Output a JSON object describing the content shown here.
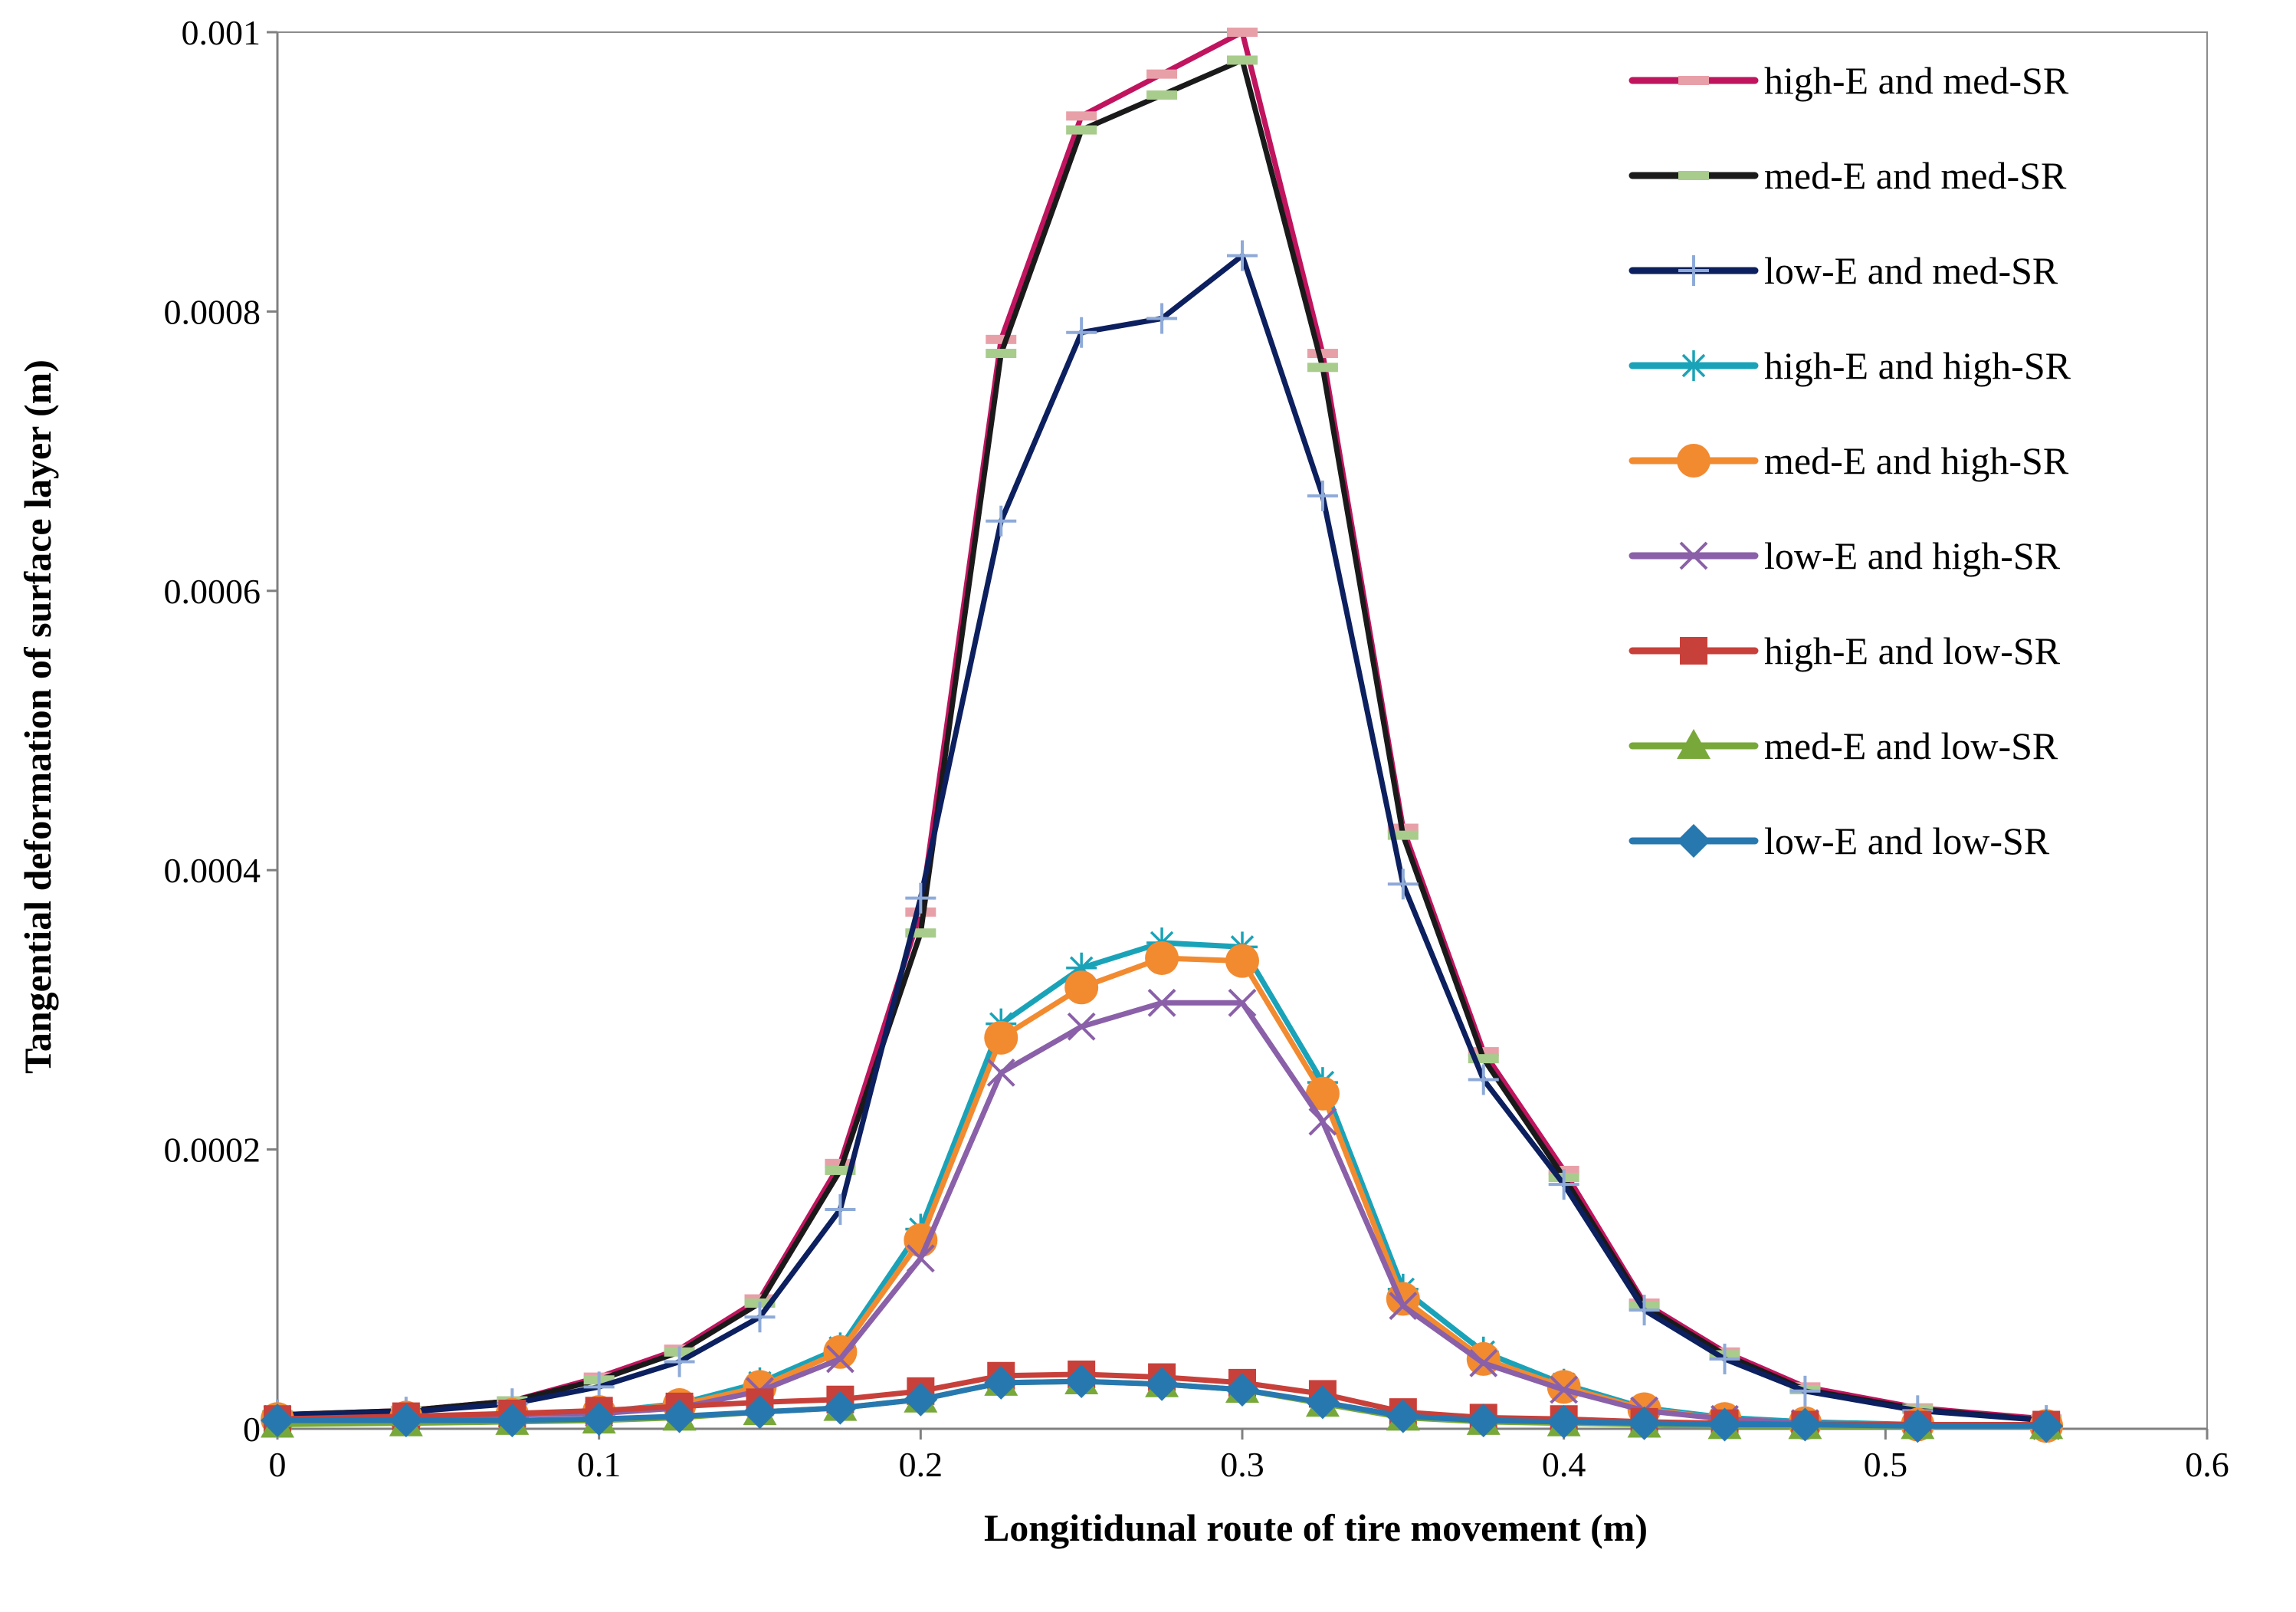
{
  "chart_data": {
    "type": "line",
    "title": "",
    "xlabel": "Longitidunal route of tire movement (m)",
    "ylabel": "Tangential deformation of surface layer (m)",
    "xlim": [
      0,
      0.6
    ],
    "ylim": [
      0,
      0.001
    ],
    "xticks": [
      0,
      0.1,
      0.2,
      0.3,
      0.4,
      0.5,
      0.6
    ],
    "xtick_labels": [
      "0",
      "0.1",
      "0.2",
      "0.3",
      "0.4",
      "0.5",
      "0.6"
    ],
    "yticks": [
      0,
      0.0002,
      0.0004,
      0.0006,
      0.0008,
      0.001
    ],
    "ytick_labels": [
      "0",
      "0.0002",
      "0.0004",
      "0.0006",
      "0.0008",
      "0.001"
    ],
    "grid": false,
    "legend_position": "top-right",
    "x": [
      0,
      0.04,
      0.073,
      0.1,
      0.125,
      0.15,
      0.175,
      0.2,
      0.225,
      0.25,
      0.275,
      0.3,
      0.325,
      0.35,
      0.375,
      0.4,
      0.425,
      0.45,
      0.475,
      0.51,
      0.55
    ],
    "series": [
      {
        "name": "high-E and med-SR",
        "color": "#c0145e",
        "marker_color": "#e8a0a8",
        "marker": "dash",
        "values": [
          1e-05,
          1.3e-05,
          2e-05,
          3.7e-05,
          5.7e-05,
          9.3e-05,
          0.00019,
          0.00037,
          0.00078,
          0.00094,
          0.00097,
          0.001,
          0.00077,
          0.00043,
          0.00027,
          0.000185,
          9e-05,
          5.5e-05,
          3e-05,
          1.5e-05,
          7e-06
        ]
      },
      {
        "name": "med-E and med-SR",
        "color": "#1a1a1a",
        "marker_color": "#a8cc8c",
        "marker": "dash",
        "values": [
          1e-05,
          1.3e-05,
          2e-05,
          3.5e-05,
          5.5e-05,
          9e-05,
          0.000185,
          0.000355,
          0.00077,
          0.00093,
          0.000955,
          0.00098,
          0.00076,
          0.000425,
          0.000265,
          0.00018,
          8.8e-05,
          5.3e-05,
          2.8e-05,
          1.4e-05,
          6e-06
        ]
      },
      {
        "name": "low-E and med-SR",
        "color": "#0c1f5e",
        "marker_color": "#8eaad8",
        "marker": "plus",
        "values": [
          1e-05,
          1.2e-05,
          1.8e-05,
          3e-05,
          4.8e-05,
          8e-05,
          0.000157,
          0.00038,
          0.00065,
          0.000785,
          0.000795,
          0.00084,
          0.000668,
          0.00039,
          0.00025,
          0.000175,
          8.5e-05,
          5e-05,
          2.7e-05,
          1.3e-05,
          6e-06
        ]
      },
      {
        "name": "high-E and high-SR",
        "color": "#1aa3b8",
        "marker_color": "#1aa3b8",
        "marker": "asterisk",
        "values": [
          7e-06,
          8e-06,
          1e-05,
          1.2e-05,
          1.8e-05,
          3.3e-05,
          5.8e-05,
          0.000143,
          0.00029,
          0.00033,
          0.000348,
          0.000345,
          0.000248,
          0.0001,
          5.5e-05,
          3.2e-05,
          1.5e-05,
          8e-06,
          5e-06,
          3e-06,
          2e-06
        ]
      },
      {
        "name": "med-E and high-SR",
        "color": "#f28a30",
        "marker_color": "#f28a30",
        "marker": "circle",
        "values": [
          7e-06,
          8e-06,
          1e-05,
          1.2e-05,
          1.7e-05,
          3e-05,
          5.5e-05,
          0.000135,
          0.00028,
          0.000316,
          0.000337,
          0.000335,
          0.00024,
          9.3e-05,
          5e-05,
          3e-05,
          1.4e-05,
          7e-06,
          4e-06,
          3e-06,
          2e-06
        ]
      },
      {
        "name": "low-E and high-SR",
        "color": "#8a60a8",
        "marker_color": "#8a60a8",
        "marker": "x",
        "values": [
          7e-06,
          8e-06,
          1e-05,
          1.1e-05,
          1.5e-05,
          2.7e-05,
          5e-05,
          0.000122,
          0.000255,
          0.000288,
          0.000305,
          0.000305,
          0.00022,
          8.8e-05,
          4.7e-05,
          2.8e-05,
          1.3e-05,
          7e-06,
          4e-06,
          3e-06,
          2e-06
        ]
      },
      {
        "name": "high-E and low-SR",
        "color": "#c8403a",
        "marker_color": "#c8403a",
        "marker": "square",
        "values": [
          7e-06,
          9e-06,
          1.1e-05,
          1.3e-05,
          1.6e-05,
          1.9e-05,
          2.1e-05,
          2.7e-05,
          3.8e-05,
          3.9e-05,
          3.7e-05,
          3.3e-05,
          2.5e-05,
          1.2e-05,
          8e-06,
          7e-06,
          5e-06,
          4e-06,
          3e-06,
          3e-06,
          3e-06
        ]
      },
      {
        "name": "med-E and low-SR",
        "color": "#78a83a",
        "marker_color": "#78a83a",
        "marker": "triangle",
        "values": [
          3e-06,
          4e-06,
          5e-06,
          6e-06,
          8e-06,
          1.2e-05,
          1.5e-05,
          2.1e-05,
          3.3e-05,
          3.4e-05,
          3.2e-05,
          2.8e-05,
          1.8e-05,
          8e-06,
          5e-06,
          4e-06,
          3e-06,
          2e-06,
          2e-06,
          2e-06,
          2e-06
        ]
      },
      {
        "name": "low-E and low-SR",
        "color": "#2878b0",
        "marker_color": "#2878b0",
        "marker": "diamond",
        "values": [
          6e-06,
          6e-06,
          6e-06,
          7e-06,
          9e-06,
          1.2e-05,
          1.5e-05,
          2.1e-05,
          3.3e-05,
          3.4e-05,
          3.2e-05,
          2.8e-05,
          1.9e-05,
          9e-06,
          6e-06,
          5e-06,
          4e-06,
          3e-06,
          3e-06,
          2e-06,
          2e-06
        ]
      }
    ]
  }
}
